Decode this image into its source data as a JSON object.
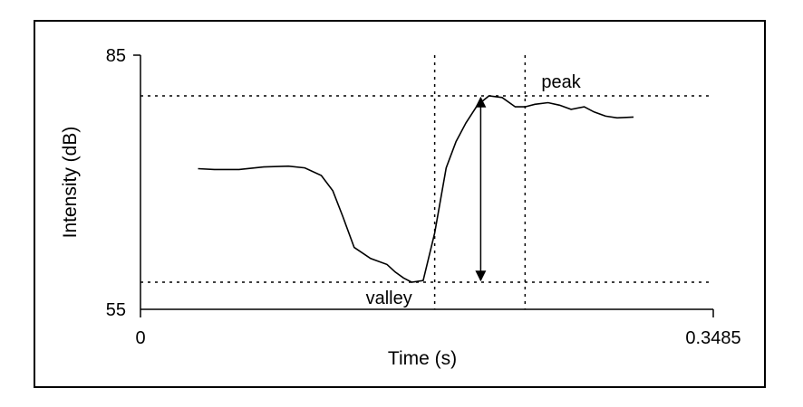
{
  "chart_data": {
    "type": "line",
    "title": "",
    "xlabel": "Time (s)",
    "ylabel": "Intensity (dB)",
    "xlim": [
      0,
      0.3485
    ],
    "ylim": [
      55,
      85
    ],
    "x_tick_labels": [
      "0",
      "0.3485"
    ],
    "y_tick_labels": [
      "55",
      "85"
    ],
    "grid": false,
    "legend": "none",
    "series": [
      {
        "x": [
          0.035,
          0.045,
          0.06,
          0.075,
          0.09,
          0.1,
          0.11,
          0.117,
          0.123,
          0.13,
          0.14,
          0.15,
          0.155,
          0.16,
          0.165,
          0.172,
          0.179,
          0.186,
          0.192,
          0.198,
          0.205,
          0.212,
          0.22,
          0.228,
          0.234,
          0.24,
          0.248,
          0.255,
          0.262,
          0.27,
          0.276,
          0.283,
          0.29,
          0.3
        ],
        "y": [
          71.6,
          71.5,
          71.5,
          71.8,
          71.9,
          71.7,
          70.8,
          69.0,
          66.0,
          62.3,
          61.0,
          60.3,
          59.4,
          58.7,
          58.2,
          58.4,
          64.0,
          71.7,
          74.8,
          77.0,
          79.1,
          80.2,
          80.0,
          78.9,
          78.9,
          79.2,
          79.4,
          79.1,
          78.6,
          78.9,
          78.3,
          77.8,
          77.6,
          77.7
        ]
      }
    ],
    "reference_lines": {
      "horizontal": [
        80.2,
        58.2
      ],
      "vertical": [
        0.179,
        0.234
      ]
    },
    "annotations": {
      "peak_label": "peak",
      "valley_label": "valley"
    },
    "arrow": {
      "x": 0.207,
      "y_from": 58.2,
      "y_to": 80.2
    }
  }
}
